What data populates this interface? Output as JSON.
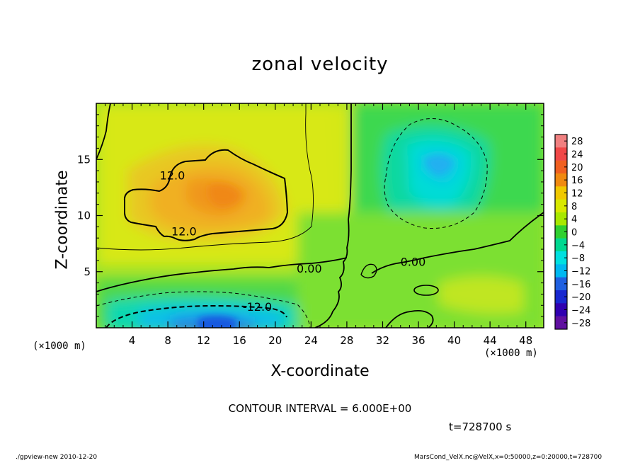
{
  "page": {
    "xunit_left": "(×1000 m)",
    "xunit_right": "(×1000 m)",
    "contour_interval_text": "CONTOUR INTERVAL = 6.000E+00",
    "time_text": "t=728700 s",
    "footer_left": "./gpview-new  2010-12-20",
    "footer_right": "MarsCond_VelX.nc@VelX,x=0:50000,z=0:20000,t=728700"
  },
  "chart_data": {
    "type": "heatmap",
    "title": "zonal velocity",
    "xlabel": "X-coordinate",
    "ylabel": "Z-coordinate",
    "xlim": [
      0,
      50
    ],
    "ylim": [
      0,
      20
    ],
    "x_ticks": [
      4,
      8,
      12,
      16,
      20,
      24,
      28,
      32,
      36,
      40,
      44,
      48
    ],
    "y_ticks": [
      5,
      10,
      15
    ],
    "colorbar": {
      "levels": [
        28,
        24,
        20,
        16,
        12,
        8,
        4,
        0,
        -4,
        -8,
        -12,
        -16,
        -20,
        -24,
        -28
      ],
      "colors": [
        "#f08080",
        "#f04848",
        "#f06020",
        "#f08a10",
        "#f0c800",
        "#d8e800",
        "#a8e800",
        "#30d030",
        "#00d890",
        "#00e0e0",
        "#00b8f0",
        "#2060e0",
        "#1828d0",
        "#3000b0",
        "#6010a0"
      ]
    },
    "contour_labels": [
      {
        "text": "12.0",
        "x": 8.5,
        "z": 13.6
      },
      {
        "text": "12.0",
        "x": 9.8,
        "z": 8.6
      },
      {
        "text": "0.00",
        "x": 23.8,
        "z": 5.3
      },
      {
        "text": "0.00",
        "x": 35.4,
        "z": 5.9
      },
      {
        "text": "-12.0",
        "x": 18.0,
        "z": 1.9
      }
    ],
    "regions": [
      {
        "name": "positive-maximum",
        "x": 14.5,
        "z": 11.5,
        "value": 16
      },
      {
        "name": "negative-upper-right",
        "x": 38.5,
        "z": 15.0,
        "value": -10
      },
      {
        "name": "negative-bottom-left",
        "x": 14.0,
        "z": 0.8,
        "value": -18
      }
    ]
  }
}
